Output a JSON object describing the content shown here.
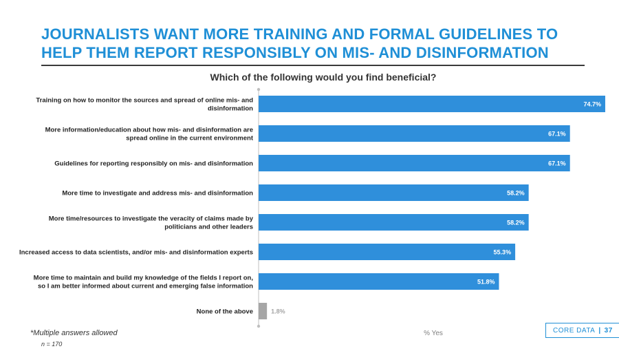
{
  "page": {
    "title_lines": [
      "JOURNALISTS WANT MORE TRAINING AND FORMAL GUIDELINES TO",
      "HELP THEM REPORT RESPONSIBLY ON MIS- AND DISINFORMATION"
    ],
    "footnote": "*Multiple answers allowed",
    "sample": "n = 170",
    "brand": "CORE DATA",
    "brand_separator": "|",
    "page_number": "37"
  },
  "colors": {
    "title": "#1f8fd6",
    "bar_primary": "#2f8fdb",
    "bar_none": "#a6a6a6",
    "label_inside": "#ffffff",
    "label_outside": "#a6a6a6"
  },
  "chart_data": {
    "type": "bar",
    "orientation": "horizontal",
    "title": "Which of the following would you find beneficial?",
    "xlabel": "% Yes",
    "xlim": [
      0,
      75
    ],
    "grid": false,
    "categories": [
      [
        "Training on how to monitor the sources and spread of online mis- and",
        "disinformation"
      ],
      [
        "More information/education about how mis- and disinformation are",
        "spread online in the current environment"
      ],
      [
        "Guidelines for reporting responsibly on mis- and disinformation"
      ],
      [
        "More time to investigate and address mis- and disinformation"
      ],
      [
        "More time/resources to investigate the veracity of claims made by",
        "politicians and other leaders"
      ],
      [
        "Increased access to data scientists, and/or mis- and disinformation experts"
      ],
      [
        "More time to maintain and build my knowledge of the fields I report on,",
        "so I am better informed about current and emerging false information"
      ],
      [
        "None of the above"
      ]
    ],
    "values": [
      74.7,
      67.1,
      67.1,
      58.2,
      58.2,
      55.3,
      51.8,
      1.8
    ],
    "value_labels": [
      "74.7%",
      "67.1%",
      "67.1%",
      "58.2%",
      "58.2%",
      "55.3%",
      "51.8%",
      "1.8%"
    ]
  }
}
